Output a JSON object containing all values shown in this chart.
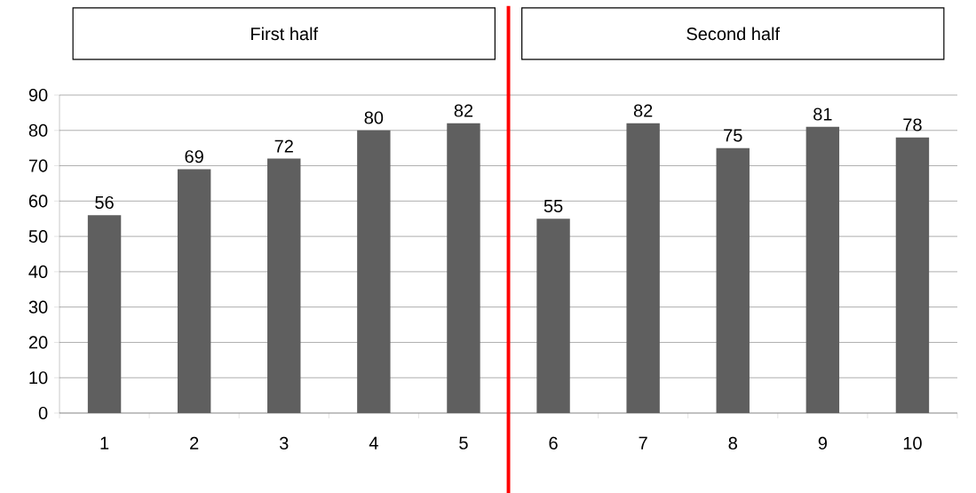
{
  "chart_data": {
    "type": "bar",
    "x": [
      1,
      2,
      3,
      4,
      5,
      6,
      7,
      8,
      9,
      10
    ],
    "values": [
      56,
      69,
      72,
      80,
      82,
      55,
      82,
      75,
      81,
      78
    ],
    "color": "#5f5f5f",
    "xlim": [
      0.5,
      10.5
    ],
    "xticks": [
      1,
      2,
      3,
      4,
      5,
      6,
      7,
      8,
      9,
      10
    ],
    "ylim": [
      0,
      90
    ],
    "yticks": [
      0,
      10,
      20,
      30,
      40,
      50,
      60,
      70,
      80,
      90
    ],
    "grid": "y",
    "data_labels": true,
    "ref_lines": [
      {
        "axis": "x",
        "value": 5.5,
        "color": "#ff0000"
      }
    ],
    "annotations": [
      "First half",
      "Second half"
    ]
  }
}
